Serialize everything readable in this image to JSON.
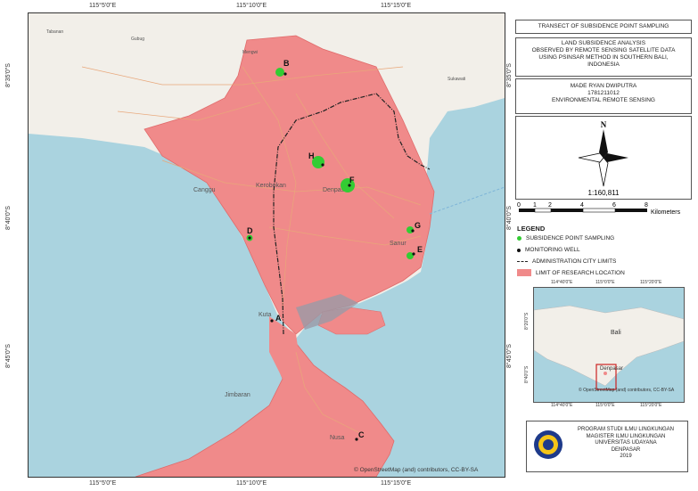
{
  "map": {
    "attribution": "© OpenStreetMap (and) contributors, CC-BY-SA",
    "coords_top": [
      "115°5'0\"E",
      "115°10'0\"E",
      "115°15'0\"E"
    ],
    "coords_bottom": [
      "115°5'0\"E",
      "115°10'0\"E",
      "115°15'0\"E"
    ],
    "coords_left": [
      "8°35'0\"S",
      "8°40'0\"S",
      "8°45'0\"S"
    ],
    "coords_right": [
      "8°35'0\"S",
      "8°40'0\"S",
      "8°45'0\"S"
    ],
    "places": {
      "canggu": "Canggu",
      "kerobokan": "Kerobokan",
      "denpasar": "Denpasar",
      "sanur": "Sanur",
      "kuta": "Kuta",
      "jimbaran": "Jimbaran",
      "nusa": "Nusa",
      "sukawati": "Sukawati",
      "mengwi": "Mengwi",
      "gubug": "Gubug",
      "tabanan": "Tabanan"
    },
    "point_labels": [
      "A",
      "B",
      "C",
      "D",
      "E",
      "F",
      "G",
      "H"
    ],
    "colors": {
      "sea": "#aad3df",
      "land": "#f2efe9",
      "research_area": "#f08a8a",
      "point": "#33cc33",
      "well": "#111111",
      "boundary": "#222222"
    }
  },
  "title_panel": {
    "title": "TRANSECT OF SUBSIDENCE POINT SAMPLING",
    "subtitle_lines": [
      "LAND SUBSIDENCE ANALYSIS",
      "OBSERVED BY REMOTE SENSING SATELLITE DATA",
      "USING PSINSAR METHOD IN SOUTHERN BALI,",
      "INDONESIA"
    ],
    "author_lines": [
      "MADE RYAN DWIPUTRA",
      "1781211012",
      "ENVIRONMENTAL REMOTE SENSING"
    ]
  },
  "north": {
    "letter": "N",
    "scale_ratio": "1:160,811"
  },
  "scalebar": {
    "ticks": [
      "0",
      "1",
      "2",
      "4",
      "6",
      "8"
    ],
    "unit": "Kilometers"
  },
  "legend": {
    "heading": "LEGEND",
    "items": [
      "SUBSIDENCE POINT SAMPLING",
      "MONITORING WELL",
      "ADMINISTRATION CITY LIMITS",
      "LIMIT OF RESEARCH LOCATION"
    ]
  },
  "inset": {
    "coords_top": [
      "114°40'0\"E",
      "115°0'0\"E",
      "115°20'0\"E"
    ],
    "coords_bottom": [
      "114°40'0\"E",
      "115°0'0\"E",
      "115°20'0\"E"
    ],
    "coords_left": [
      "8°20'0\"S",
      "8°40'0\"S"
    ],
    "bali": "Bali",
    "denpasar": "Denpasar",
    "attribution": "© OpenStreetMap (and) contributors, CC-BY-SA"
  },
  "institution": {
    "lines": [
      "PROGRAM STUDI ILMU LINGKUNGAN",
      "MAGISTER ILMU LINGKUNGAN",
      "UNIVERSITAS UDAYANA",
      "DENPASAR",
      "2019"
    ]
  }
}
